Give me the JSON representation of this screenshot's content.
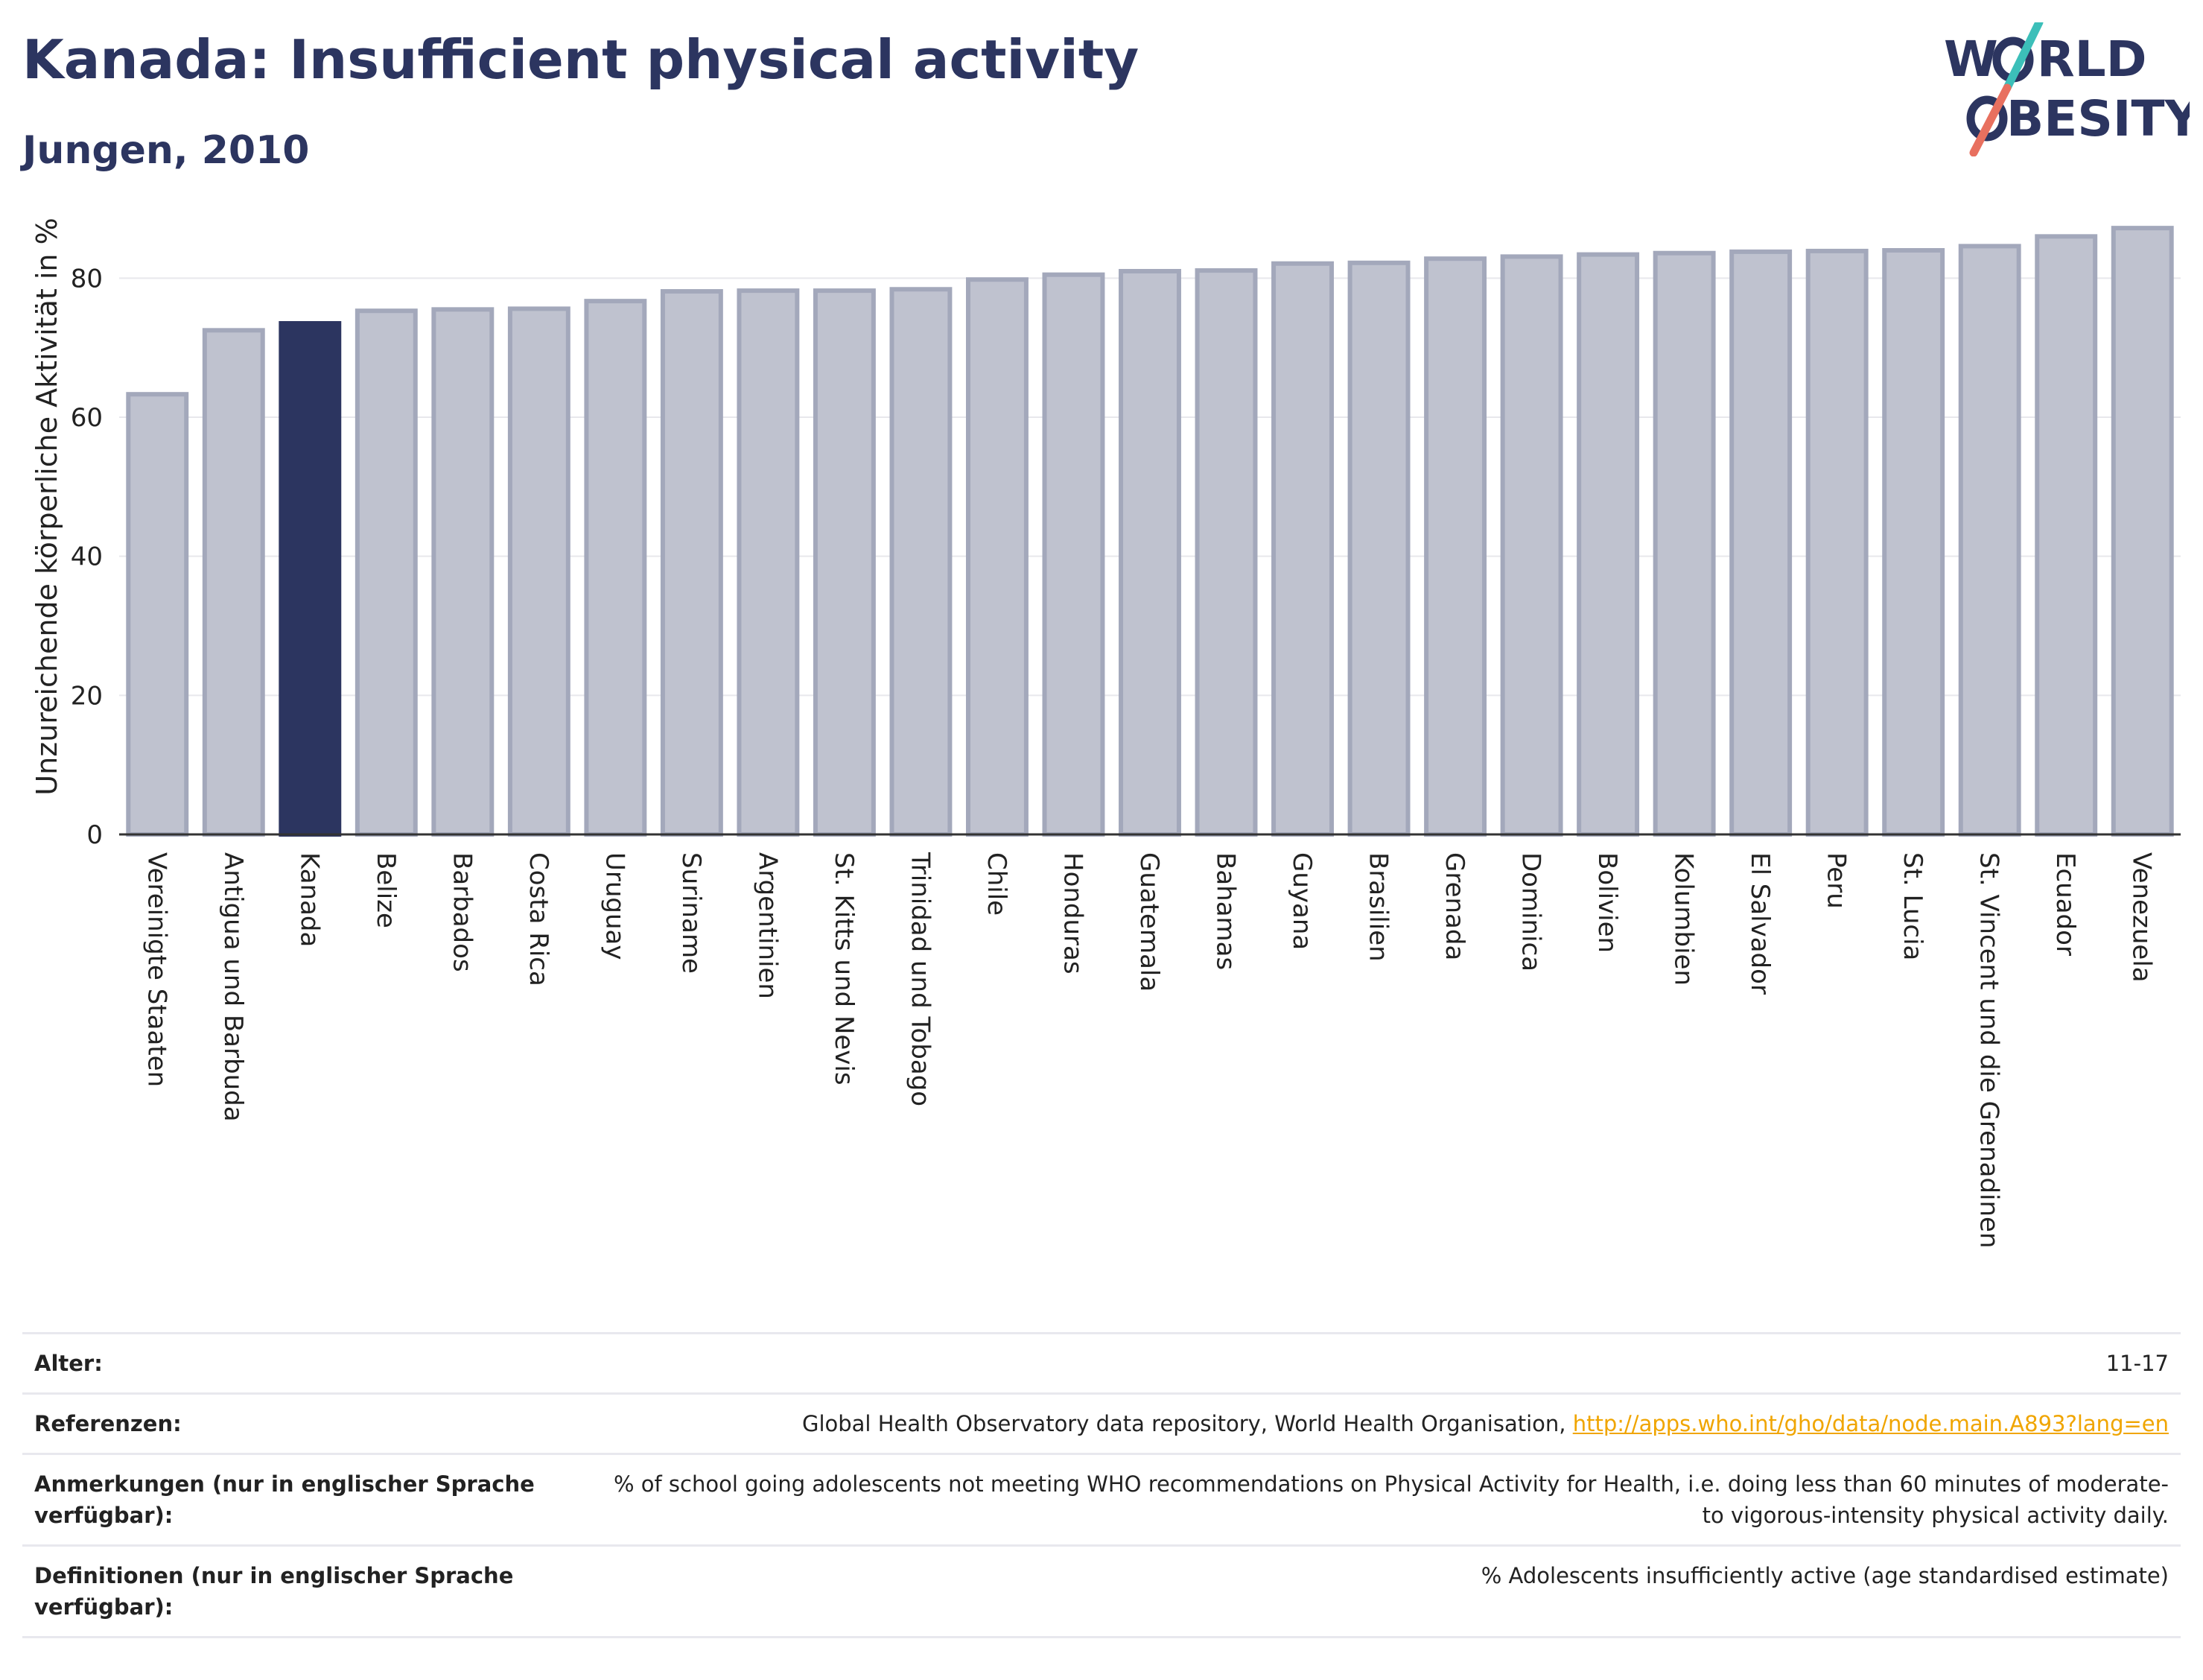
{
  "title": "Kanada: Insufficient physical activity",
  "subtitle": "Jungen, 2010",
  "logo": {
    "line1": "W",
    "line1b": "RLD",
    "line2b": "BESITY",
    "accent_colors": [
      "#3cbfb9",
      "#e8705f"
    ],
    "text_color": "#2c3560"
  },
  "colors": {
    "bar": "#bfc2cf",
    "bar_edge": "#a3a8bb",
    "highlight": "#2c3560",
    "grid": "#e8e8ec",
    "axis": "#333333"
  },
  "chart_data": {
    "type": "bar",
    "ylabel": "Unzureichende körperliche Aktivität in %",
    "ylim": [
      0,
      90
    ],
    "yticks": [
      0,
      20,
      40,
      60,
      80
    ],
    "highlight": "Kanada",
    "grid": true,
    "categories": [
      "Vereinigte Staaten",
      "Antigua und Barbuda",
      "Kanada",
      "Belize",
      "Barbados",
      "Costa Rica",
      "Uruguay",
      "Suriname",
      "Argentinien",
      "St. Kitts und Nevis",
      "Trinidad und Tobago",
      "Chile",
      "Honduras",
      "Guatemala",
      "Bahamas",
      "Guyana",
      "Brasilien",
      "Grenada",
      "Dominica",
      "Bolivien",
      "Kolumbien",
      "El Salvador",
      "Peru",
      "St. Lucia",
      "St. Vincent und die Grenadinen",
      "Ecuador",
      "Venezuela"
    ],
    "values": [
      63.3,
      72.5,
      73.5,
      75.3,
      75.5,
      75.6,
      76.7,
      78.1,
      78.2,
      78.2,
      78.4,
      79.8,
      80.5,
      81.0,
      81.1,
      82.1,
      82.2,
      82.8,
      83.1,
      83.4,
      83.6,
      83.8,
      83.9,
      84.0,
      84.6,
      86.0,
      87.2
    ]
  },
  "info": [
    {
      "label": "Alter:",
      "value": "11-17"
    },
    {
      "label": "Referenzen:",
      "value": "Global Health Observatory data repository, World Health Organisation, ",
      "link": "http://apps.who.int/gho/data/node.main.A893?lang=en"
    },
    {
      "label": "Anmerkungen (nur in englischer Sprache verfügbar):",
      "value": "% of school going adolescents not meeting WHO recommendations on Physical Activity for Health, i.e. doing less than 60 minutes of moderate- to vigorous-intensity physical activity daily."
    },
    {
      "label": "Definitionen (nur in englischer Sprache verfügbar):",
      "value": "% Adolescents insufficiently active (age standardised estimate)"
    }
  ]
}
